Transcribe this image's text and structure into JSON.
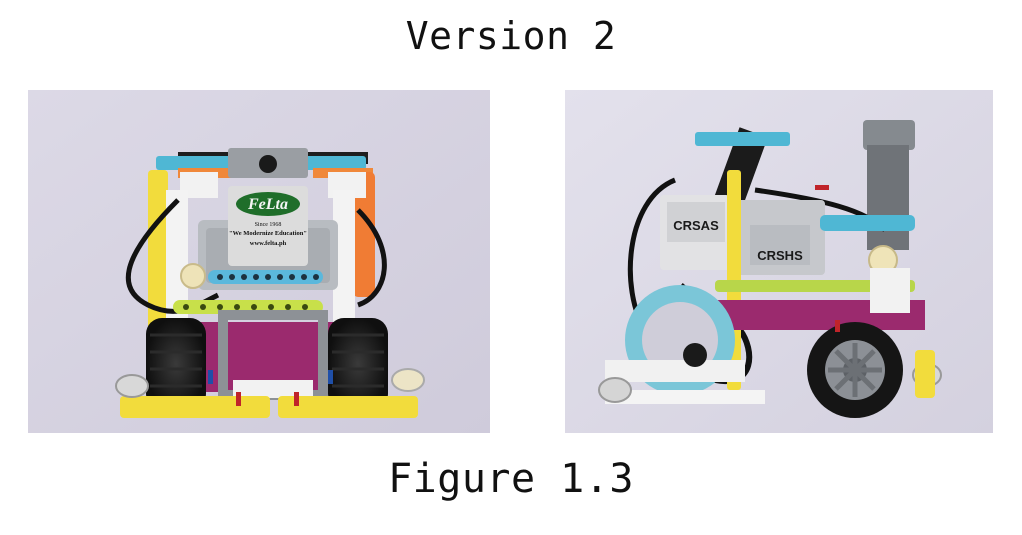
{
  "heading": "Version 2",
  "caption": "Figure 1.3",
  "photos": {
    "front": {
      "label_brand": "FeLta",
      "label_line1": "Since 1968",
      "label_line2": "\"We Modernize Education\"",
      "label_line3": "www.felta.ph"
    },
    "side": {
      "hub_label_top": "CRSAS",
      "hub_label_bottom": "CRSHS"
    }
  }
}
